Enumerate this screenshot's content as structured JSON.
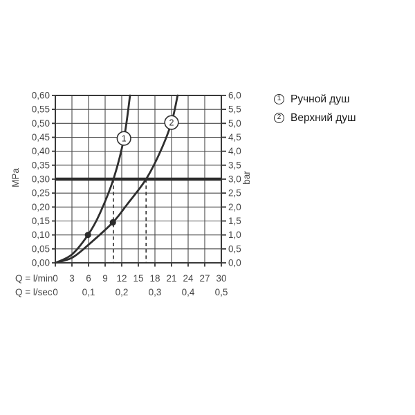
{
  "legend": {
    "items": [
      {
        "symbol": "1",
        "label": "Ручной душ"
      },
      {
        "symbol": "2",
        "label": "Верхний душ"
      }
    ]
  },
  "chart_data": {
    "type": "line",
    "title": "",
    "x_axis": {
      "label": "Q = l/min",
      "range": [
        0,
        30
      ],
      "tick_step": 3,
      "tick_labels": [
        "0",
        "3",
        "6",
        "9",
        "12",
        "15",
        "18",
        "21",
        "24",
        "27",
        "30"
      ]
    },
    "x_axis_secondary": {
      "label": "Q = l/sec",
      "ticks": [
        {
          "at_lmin": 0,
          "label": "0"
        },
        {
          "at_lmin": 6,
          "label": "0,1"
        },
        {
          "at_lmin": 12,
          "label": "0,2"
        },
        {
          "at_lmin": 18,
          "label": "0,3"
        },
        {
          "at_lmin": 24,
          "label": "0,4"
        },
        {
          "at_lmin": 30,
          "label": "0,5"
        }
      ]
    },
    "y_axis_left": {
      "label": "MPa",
      "range": [
        0,
        0.6
      ],
      "tick_step": 0.05,
      "tick_labels_top_to_bottom": [
        "0,60",
        "0,55",
        "0,50",
        "0,45",
        "0,40",
        "0,35",
        "0,30",
        "0,25",
        "0,20",
        "0,15",
        "0,10",
        "0,05",
        "0,00"
      ]
    },
    "y_axis_right": {
      "label": "bar",
      "range": [
        0,
        6
      ],
      "tick_step": 0.5,
      "tick_labels_top_to_bottom": [
        "6,0",
        "5,5",
        "5,0",
        "4,5",
        "4,0",
        "3,5",
        "3,0",
        "2,5",
        "2,0",
        "1,5",
        "1,0",
        "0,5",
        "0,0"
      ]
    },
    "grid": true,
    "series": [
      {
        "name": "Ручной душ",
        "marker_symbol": "1",
        "marker_label_at": {
          "x": 12.4,
          "y": 0.446
        },
        "highlight_point": {
          "x": 5.9,
          "y": 0.1
        },
        "points": [
          [
            0,
            0
          ],
          [
            3,
            0.03
          ],
          [
            5.9,
            0.1
          ],
          [
            8,
            0.175
          ],
          [
            10.5,
            0.3
          ],
          [
            12.4,
            0.446
          ],
          [
            13.5,
            0.6
          ]
        ]
      },
      {
        "name": "Верхний душ",
        "marker_symbol": "2",
        "marker_label_at": {
          "x": 21.0,
          "y": 0.503
        },
        "highlight_point": {
          "x": 10.4,
          "y": 0.145
        },
        "points": [
          [
            0,
            0
          ],
          [
            3,
            0.018
          ],
          [
            6,
            0.065
          ],
          [
            10.4,
            0.145
          ],
          [
            13,
            0.21
          ],
          [
            16.4,
            0.3
          ],
          [
            19,
            0.4
          ],
          [
            21,
            0.503
          ],
          [
            22.1,
            0.6
          ]
        ]
      }
    ],
    "reference_line_y": {
      "value_mpa": 0.3,
      "value_bar": 3.0
    },
    "dashed_guides_x_lmin": [
      10.5,
      16.4
    ],
    "colors": {
      "background": "#ffffff",
      "grid": "#484848",
      "border": "#383838",
      "curve": "#2f2f2f",
      "reference_line": "#2b2b2b",
      "point": "#2b2b2b",
      "axis_text": "#464646",
      "legend_text": "#1b1b1b"
    }
  }
}
